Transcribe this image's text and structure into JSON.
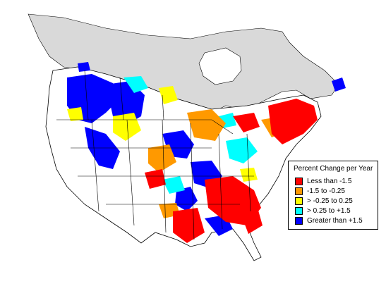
{
  "legend": {
    "title": "Percent Change per Year",
    "items": [
      {
        "label": "Less than -1.5",
        "color": "#ff0000"
      },
      {
        "label": "-1.5 to -0.25",
        "color": "#ff9900"
      },
      {
        "label": "> -0.25 to 0.25",
        "color": "#ffff00"
      },
      {
        "label": "> 0.25 to +1.5",
        "color": "#00ffff"
      },
      {
        "label": "Greater than +1.5",
        "color": "#0000ff"
      }
    ]
  },
  "colors": {
    "no_data_region": "#d9d9d9",
    "land": "#ffffff",
    "boundaries": "#000000"
  }
}
